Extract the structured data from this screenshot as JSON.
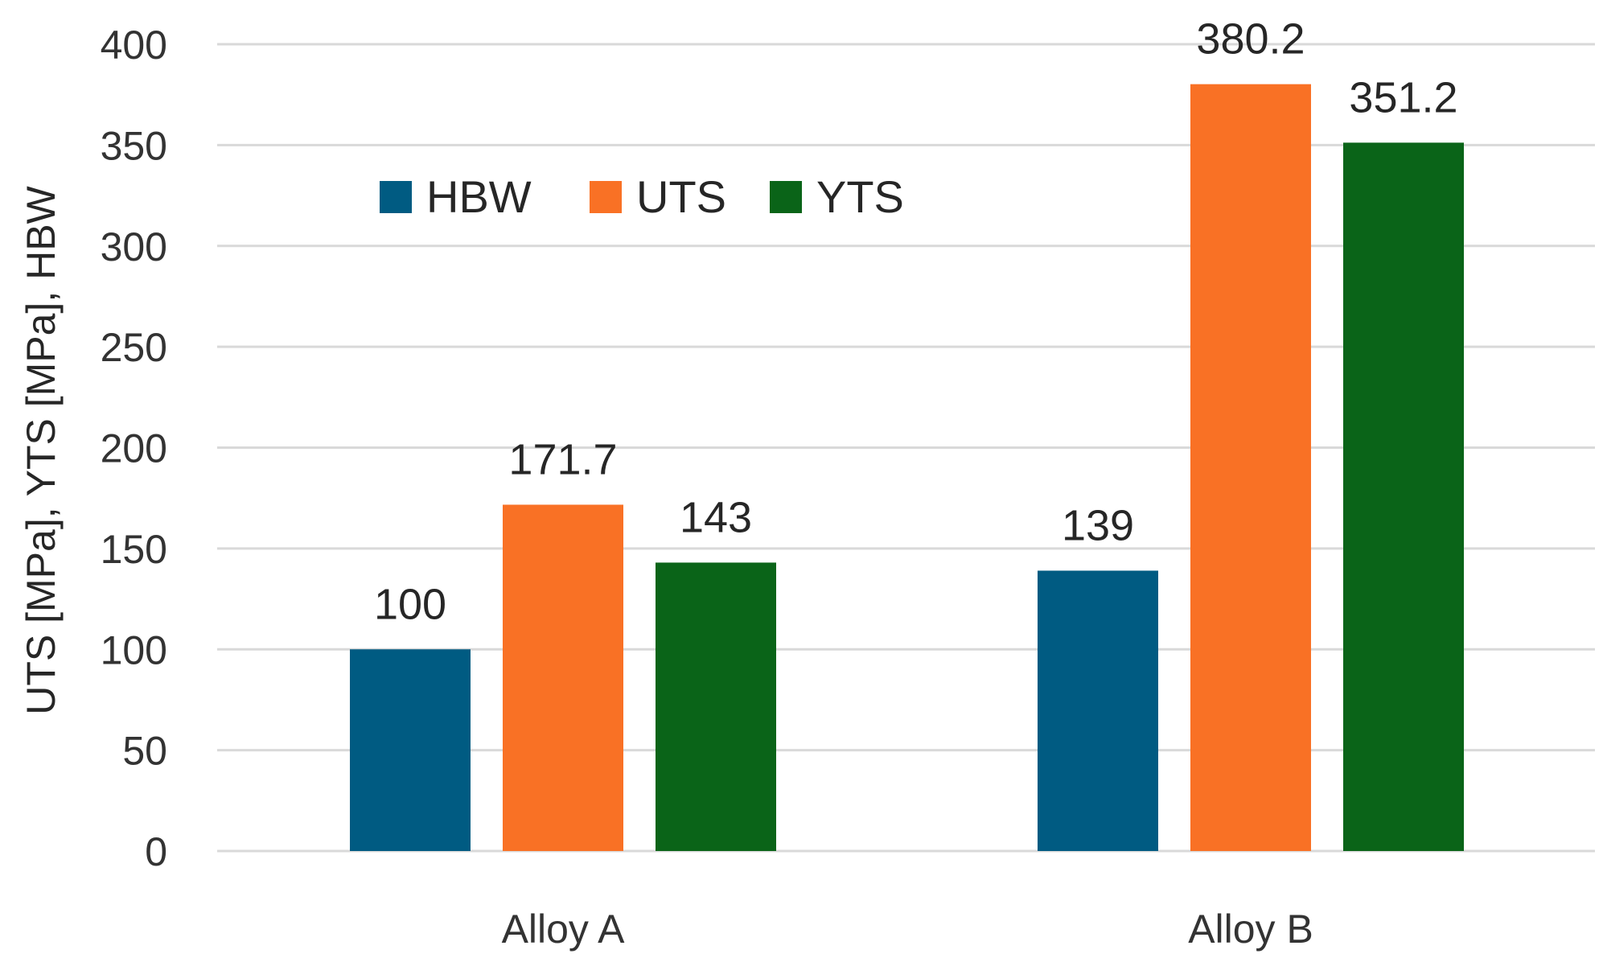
{
  "chart_data": {
    "type": "bar",
    "categories": [
      "Alloy A",
      "Alloy B"
    ],
    "series": [
      {
        "name": "HBW",
        "color": "#005b82",
        "values": [
          100,
          139
        ],
        "labels": [
          "100",
          "139"
        ]
      },
      {
        "name": "UTS",
        "color": "#f97125",
        "values": [
          171.7,
          380.2
        ],
        "labels": [
          "171.7",
          "380.2"
        ]
      },
      {
        "name": "YTS",
        "color": "#0a6418",
        "values": [
          143,
          351.2
        ],
        "labels": [
          "143",
          "351.2"
        ]
      }
    ],
    "ylabel": "UTS [MPa], YTS [MPa], HBW",
    "ylim": [
      0,
      400
    ],
    "yticks": [
      0,
      50,
      100,
      150,
      200,
      250,
      300,
      350,
      400
    ],
    "grid": true,
    "legend_position": "top-left"
  }
}
